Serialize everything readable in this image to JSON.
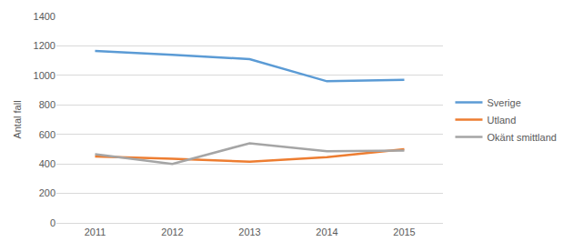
{
  "chart_data": {
    "type": "line",
    "y_label": "Antal fall",
    "categories": [
      "2011",
      "2012",
      "2013",
      "2014",
      "2015"
    ],
    "series": [
      {
        "name": "Sverige",
        "color": "#5B9BD5",
        "values": [
          1165,
          1140,
          1110,
          960,
          970
        ]
      },
      {
        "name": "Utland",
        "color": "#ED7D31",
        "values": [
          450,
          435,
          415,
          445,
          500
        ]
      },
      {
        "name": "Okänt smittland",
        "color": "#A5A5A5",
        "values": [
          465,
          400,
          540,
          485,
          490
        ]
      }
    ],
    "ylim": [
      0,
      1400
    ],
    "yticks": [
      0,
      200,
      400,
      600,
      800,
      1000,
      1200,
      1400
    ],
    "grid": true,
    "legend": "right"
  }
}
